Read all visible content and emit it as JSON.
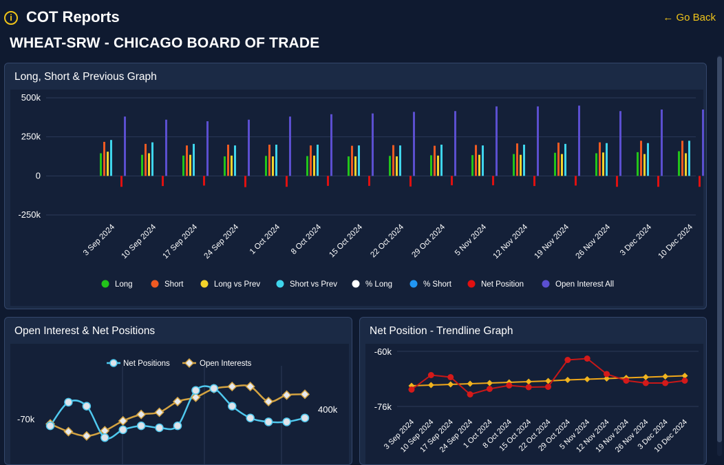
{
  "header": {
    "info_icon": "info-circle-icon",
    "app_title": "COT Reports",
    "go_back": "← Go Back",
    "page_title": "WHEAT-SRW - CHICAGO BOARD OF TRADE"
  },
  "colors": {
    "background": "#0f1a30",
    "card": "#1b2a45",
    "accent": "#f0c419",
    "long": "#22c41a",
    "short": "#f05a22",
    "long_vs_prev": "#f3d32a",
    "short_vs_prev": "#3fd5ec",
    "pct_long": "#ffffff",
    "pct_short": "#2196f3",
    "net_position": "#e01010",
    "open_interest_all": "#5b4fd0"
  },
  "chart_data": [
    {
      "type": "bar",
      "title": "Long, Short & Previous Graph",
      "categories": [
        "3 Sep 2024",
        "10 Sep 2024",
        "17 Sep 2024",
        "24 Sep 2024",
        "1 Oct 2024",
        "8 Oct 2024",
        "15 Oct 2024",
        "22 Oct 2024",
        "29 Oct 2024",
        "5 Nov 2024",
        "12 Nov 2024",
        "19 Nov 2024",
        "26 Nov 2024",
        "3 Dec 2024",
        "10 Dec 2024"
      ],
      "y_ticks": [
        "500k",
        "250k",
        "0",
        "-250k"
      ],
      "ylim": [
        -250000,
        500000
      ],
      "legend_position": "bottom",
      "series": [
        {
          "name": "Long",
          "values": [
            145000,
            135000,
            130000,
            125000,
            128000,
            127000,
            125000,
            128000,
            132000,
            133000,
            140000,
            148000,
            145000,
            152000,
            158000
          ]
        },
        {
          "name": "Short",
          "values": [
            218000,
            205000,
            195000,
            200000,
            200000,
            195000,
            193000,
            197000,
            193000,
            198000,
            208000,
            213000,
            215000,
            225000,
            225000
          ]
        },
        {
          "name": "Long vs Prev",
          "values": [
            155000,
            145000,
            135000,
            130000,
            125000,
            130000,
            125000,
            125000,
            130000,
            135000,
            135000,
            140000,
            150000,
            140000,
            145000
          ]
        },
        {
          "name": "Short vs Prev",
          "values": [
            230000,
            215000,
            205000,
            195000,
            200000,
            200000,
            195000,
            195000,
            200000,
            195000,
            200000,
            205000,
            210000,
            210000,
            225000
          ]
        },
        {
          "name": "% Long",
          "values": [
            0,
            0,
            0,
            0,
            0,
            0,
            0,
            0,
            0,
            0,
            0,
            0,
            0,
            0,
            0
          ]
        },
        {
          "name": "% Short",
          "values": [
            0,
            0,
            0,
            0,
            0,
            0,
            0,
            0,
            0,
            0,
            0,
            0,
            0,
            0,
            0
          ]
        },
        {
          "name": "Net Position",
          "values": [
            -70000,
            -65000,
            -62000,
            -72000,
            -70000,
            -64000,
            -64000,
            -68000,
            -60000,
            -60000,
            -65000,
            -62000,
            -70000,
            -70000,
            -70000
          ]
        },
        {
          "name": "Open Interest All",
          "values": [
            380000,
            360000,
            350000,
            360000,
            380000,
            395000,
            400000,
            410000,
            415000,
            445000,
            445000,
            450000,
            415000,
            425000,
            425000
          ]
        }
      ]
    },
    {
      "type": "line",
      "title": "Open Interest & Net Positions",
      "y_left_label": "-70k",
      "y_right_label": "400k",
      "legend_position": "top",
      "series": [
        {
          "name": "Net Positions",
          "values": [
            -70000,
            -64000,
            -65000,
            -73000,
            -71000,
            -70000,
            -70500,
            -70000,
            -61000,
            -60500,
            -65000,
            -68000,
            -69000,
            -69000,
            -68000
          ]
        },
        {
          "name": "Open Interests",
          "values": [
            378000,
            360000,
            350000,
            362000,
            385000,
            400000,
            405000,
            430000,
            440000,
            460000,
            465000,
            465000,
            430000,
            445000,
            447000
          ]
        }
      ]
    },
    {
      "type": "line",
      "title": "Net Position - Trendline Graph",
      "categories": [
        "3 Sep 2024",
        "10 Sep 2024",
        "17 Sep 2024",
        "24 Sep 2024",
        "1 Oct 2024",
        "8 Oct 2024",
        "15 Oct 2024",
        "22 Oct 2024",
        "29 Oct 2024",
        "5 Nov 2024",
        "12 Nov 2024",
        "19 Nov 2024",
        "26 Nov 2024",
        "3 Dec 2024",
        "10 Dec 2024"
      ],
      "y_ticks": [
        "-60k",
        "-76k"
      ],
      "series": [
        {
          "name": "Net Position",
          "values": [
            -71100,
            -66900,
            -67500,
            -72500,
            -70900,
            -69900,
            -70400,
            -70300,
            -62500,
            -62100,
            -66600,
            -68500,
            -69200,
            -69200,
            -68500
          ]
        },
        {
          "name": "Trendline",
          "values": [
            -70000,
            -69800,
            -69600,
            -69400,
            -69200,
            -69000,
            -68800,
            -68600,
            -68300,
            -68100,
            -67900,
            -67700,
            -67500,
            -67300,
            -67100
          ]
        }
      ]
    }
  ]
}
